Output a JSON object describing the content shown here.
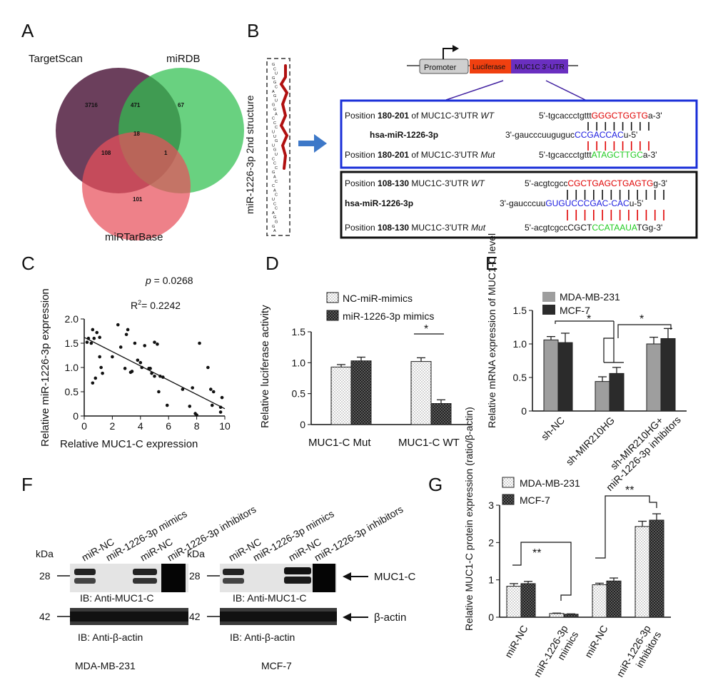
{
  "panels": {
    "a": "A",
    "b": "B",
    "c": "C",
    "d": "D",
    "e": "E",
    "f": "F",
    "g": "G"
  },
  "colors": {
    "targetscan": "#5b2a4a",
    "mirdb": "#2fbf4f",
    "mirtarbase": "#e8505b",
    "red_seq": "#e00000",
    "blue_seq": "#1a1adf",
    "green_seq": "#22cc22",
    "luciferase": "#f04010",
    "utr": "#6a2fc0",
    "arrow": "#3d78c8",
    "box_blue": "#1a2fd8",
    "hairpin": "#b01010"
  },
  "venn": {
    "labels": {
      "targetscan": "TargetScan",
      "mirdb": "miRDB",
      "mirtarbase": "miRTarBase"
    },
    "counts": {
      "ts_only": "3716",
      "ts_db": "471",
      "db_only": "67",
      "all": "18",
      "ts_tb": "108",
      "db_tb": "1",
      "tb_only": "101"
    }
  },
  "panel_b": {
    "structure_label": "miR-1226-3p 2nd structure",
    "hairpin_letters": "GCUGGCAGUGGACCCUUGUGUCCCGACCACUCCAGGGAG",
    "promoter": "Promoter",
    "luciferase": "Luciferase",
    "utr": "MUC1C 3'-UTR",
    "box1": {
      "row1": {
        "pos": "Position ",
        "num": "180-201",
        "mid": " of MUC1C-3'UTR ",
        "tag": "WT",
        "s1": "5'-tgcaccctgttt",
        "s2": "GGGCTGGTG",
        "s3": "a-3'"
      },
      "row2": {
        "name": "hsa-miR-1226-3p",
        "s1": "3'-gaucccuuguguc",
        "s2": "CCGACCAC",
        "s3": "u-5'"
      },
      "row3": {
        "pos": "Position ",
        "num": "180-201",
        "mid": " of MUC1C-3'UTR ",
        "tag": "Mut",
        "s1": "5'-tgcaccctgttt",
        "s2": "ATAGCTTGC",
        "s3": "a-3'"
      }
    },
    "box2": {
      "row1": {
        "pos": "Position ",
        "num": "108-130",
        "mid": " MUC1C-3'UTR ",
        "tag": "WT",
        "s1": "5'-acgtcgcc",
        "s2": "CGCTGAGCTGAGTG",
        "s3": "g-3'"
      },
      "row2": {
        "name": "hsa-miR-1226-3p",
        "s1": "3'-gaucccuu",
        "s2": "GUGUCCCGAC-CAC",
        "s3": "u-5'"
      },
      "row3": {
        "pos": "Position ",
        "num": "108-130",
        "mid": " MUC1C-3'UTR ",
        "tag": "Mut",
        "s1": "5'-acgtcgccCGCT",
        "s2": "CCATAAUA",
        "s3": "TGg-3'"
      }
    }
  },
  "chart_data": [
    {
      "panel": "C",
      "type": "scatter",
      "xlabel": "Relative MUC1-C expression",
      "ylabel": "Relative miR-1226-3p expression",
      "p_label": "p",
      "p_text": " = 0.0268",
      "r2_label": "R",
      "r2_sup": "2",
      "r2_text": "= 0.2242",
      "xlim": [
        0,
        10
      ],
      "ylim": [
        0,
        2.0
      ],
      "xticks": [
        "0",
        "2",
        "4",
        "6",
        "8",
        "10"
      ],
      "yticks": [
        "0",
        "0.5",
        "1.0",
        "1.5",
        "2.0"
      ],
      "fit": [
        [
          0,
          1.62
        ],
        [
          10,
          0.15
        ]
      ],
      "points": [
        [
          0.2,
          1.52
        ],
        [
          0.3,
          1.6
        ],
        [
          0.5,
          1.5
        ],
        [
          0.6,
          1.78
        ],
        [
          0.6,
          0.68
        ],
        [
          0.7,
          1.6
        ],
        [
          0.8,
          0.78
        ],
        [
          0.9,
          1.72
        ],
        [
          1.1,
          1.22
        ],
        [
          1.1,
          1.62
        ],
        [
          1.2,
          1.0
        ],
        [
          1.3,
          0.88
        ],
        [
          2.0,
          1.22
        ],
        [
          2.4,
          1.88
        ],
        [
          2.6,
          1.42
        ],
        [
          2.9,
          0.98
        ],
        [
          3.0,
          1.68
        ],
        [
          3.1,
          1.78
        ],
        [
          3.3,
          0.9
        ],
        [
          3.4,
          0.92
        ],
        [
          3.6,
          1.5
        ],
        [
          3.8,
          1.15
        ],
        [
          4.0,
          1.1
        ],
        [
          4.1,
          1.0
        ],
        [
          4.3,
          1.45
        ],
        [
          4.6,
          0.98
        ],
        [
          4.7,
          0.98
        ],
        [
          4.8,
          0.88
        ],
        [
          5.0,
          1.52
        ],
        [
          5.0,
          0.82
        ],
        [
          5.2,
          1.48
        ],
        [
          5.3,
          0.5
        ],
        [
          5.4,
          0.82
        ],
        [
          5.6,
          0.8
        ],
        [
          5.9,
          0.22
        ],
        [
          7.0,
          0.55
        ],
        [
          7.5,
          0.2
        ],
        [
          7.7,
          0.58
        ],
        [
          7.9,
          0.05
        ],
        [
          8.0,
          0.02
        ],
        [
          8.2,
          1.5
        ],
        [
          8.8,
          1.0
        ],
        [
          9.0,
          0.55
        ],
        [
          9.1,
          0.22
        ],
        [
          9.2,
          0.5
        ],
        [
          9.7,
          0.18
        ],
        [
          9.7,
          0.08
        ],
        [
          9.8,
          0.38
        ]
      ]
    },
    {
      "panel": "D",
      "type": "bar",
      "ylabel": "Relative luciferase activity",
      "ylim": [
        0,
        1.5
      ],
      "yticks": [
        "0",
        "0.5",
        "1.0",
        "1.5"
      ],
      "categories": [
        "MUC1-C Mut",
        "MUC1-C WT"
      ],
      "series": [
        {
          "name": "NC-miR-mimics",
          "values": [
            0.93,
            1.02
          ],
          "err": [
            0.04,
            0.06
          ]
        },
        {
          "name": "miR-1226-3p mimics",
          "values": [
            1.03,
            0.34
          ],
          "err": [
            0.06,
            0.06
          ]
        }
      ],
      "annotation": "*"
    },
    {
      "panel": "E",
      "type": "bar",
      "ylabel": "Relative mRNA expression of MUC1-C level",
      "ylim": [
        0,
        1.5
      ],
      "yticks": [
        "0",
        "0.5",
        "1.0",
        "1.5"
      ],
      "categories": [
        "sh-NC",
        "sh-MIR210HG",
        "sh-MIR210HG+ miR-1226-3p inhibitors"
      ],
      "series": [
        {
          "name": "MDA-MB-231",
          "values": [
            1.06,
            0.44,
            1.0
          ],
          "err": [
            0.05,
            0.07,
            0.1
          ]
        },
        {
          "name": "MCF-7",
          "values": [
            1.02,
            0.56,
            1.08
          ],
          "err": [
            0.14,
            0.09,
            0.15
          ]
        }
      ],
      "annotations": [
        "*",
        "*"
      ]
    },
    {
      "panel": "G",
      "type": "bar",
      "ylabel": "Relative MUC1-C protein expression (ratio/β-actin)",
      "ylim": [
        0,
        3
      ],
      "yticks": [
        "0",
        "1",
        "2",
        "3"
      ],
      "categories": [
        "miR-NC",
        "miR-1226-3p mimics",
        "miR-NC",
        "miR-1226-3p inhibitors"
      ],
      "series": [
        {
          "name": "MDA-MB-231",
          "values": [
            0.83,
            0.1,
            0.87,
            2.43
          ],
          "err": [
            0.07,
            0.01,
            0.04,
            0.14
          ]
        },
        {
          "name": "MCF-7",
          "values": [
            0.9,
            0.08,
            0.97,
            2.6
          ],
          "err": [
            0.06,
            0.01,
            0.08,
            0.17
          ]
        }
      ],
      "annotations": [
        "**",
        "**"
      ]
    }
  ],
  "panel_f": {
    "kda": "kDa",
    "m28": "28",
    "m42": "42",
    "lanes": [
      "miR-NC",
      "miR-1226-3p mimics",
      "miR-NC",
      "miR-1226-3p inhibitors"
    ],
    "ib_muc": "IB: Anti-MUC1-C",
    "ib_actin": "IB: Anti-β-actin",
    "cell1": "MDA-MB-231",
    "cell2": "MCF-7",
    "muc1c": "MUC1-C",
    "bactin": "β-actin"
  }
}
